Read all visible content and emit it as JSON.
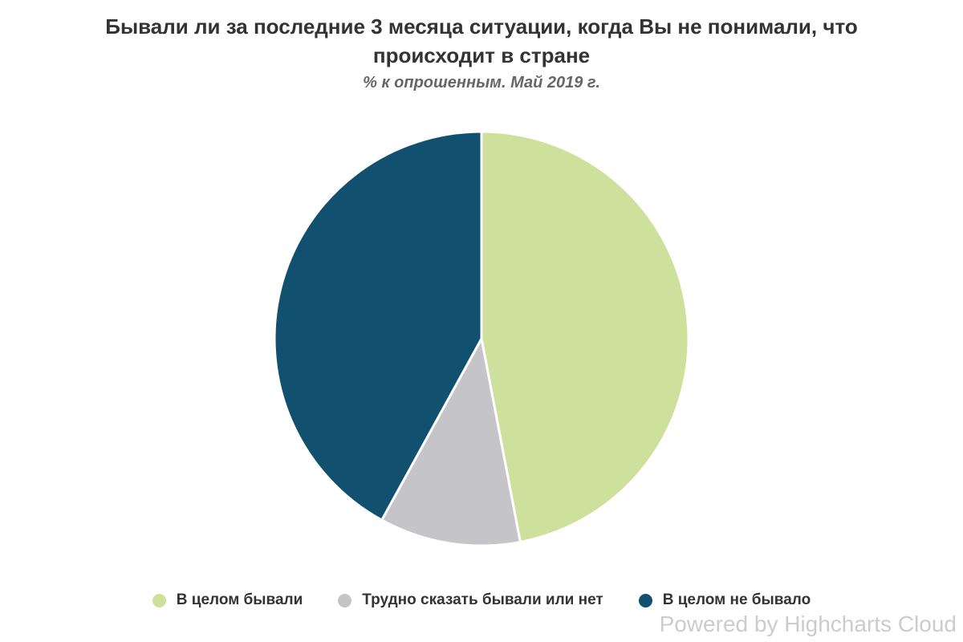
{
  "header": {
    "title_lines": [
      "Бывали ли за последние 3 месяца ситуации, когда Вы не понимали, что",
      "происходит в стране"
    ],
    "subtitle": "% к опрошенным. Май 2019 г."
  },
  "credits": {
    "label": "Powered by Highcharts Cloud"
  },
  "colors": {
    "background": "#ffffff",
    "title_text": "#333333",
    "subtitle_text": "#666666",
    "legend_text": "#333333",
    "credits_text": "#cccccc",
    "slice_border": "#ffffff"
  },
  "chart_data": {
    "type": "pie",
    "title": "Бывали ли за последние 3 месяца ситуации, когда Вы не понимали, что происходит в стране",
    "subtitle": "% к опрошенным. Май 2019 г.",
    "unit": "%",
    "start_angle_deg": 0,
    "direction": "clockwise",
    "legend_position": "bottom",
    "data_labels": false,
    "slices": [
      {
        "label": "В целом бывали",
        "value": 47,
        "color": "#cde09c"
      },
      {
        "label": "Трудно сказать бывали или нет",
        "value": 11,
        "color": "#c5c5c9"
      },
      {
        "label": "В целом не бывало",
        "value": 42,
        "color": "#11506f"
      }
    ]
  }
}
